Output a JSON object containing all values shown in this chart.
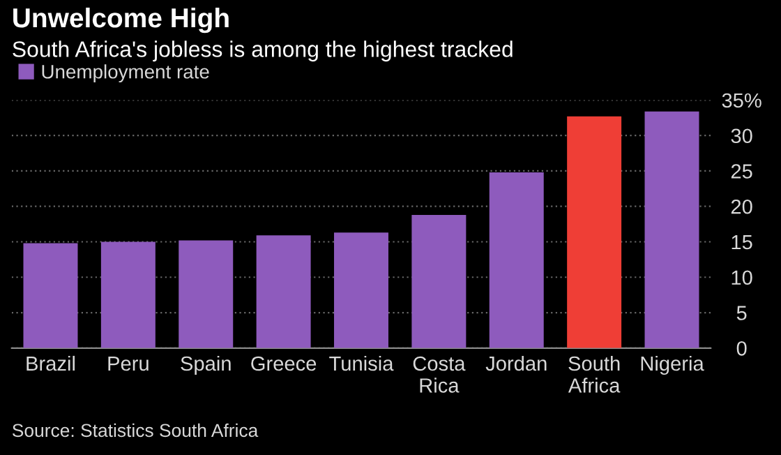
{
  "chart_data": {
    "type": "bar",
    "title": "Unwelcome High",
    "subtitle": "South Africa's jobless is among the highest tracked",
    "categories": [
      "Brazil",
      "Peru",
      "Spain",
      "Greece",
      "Tunisia",
      "Costa\nRica",
      "Jordan",
      "South\nAfrica",
      "Nigeria"
    ],
    "series": [
      {
        "name": "Unemployment rate",
        "color": "#8e5bbd",
        "colors": [
          "#8e5bbd",
          "#8e5bbd",
          "#8e5bbd",
          "#8e5bbd",
          "#8e5bbd",
          "#8e5bbd",
          "#8e5bbd",
          "#ef3e36",
          "#8e5bbd"
        ],
        "values": [
          14.8,
          15.0,
          15.2,
          15.9,
          16.3,
          18.8,
          24.8,
          32.7,
          33.4
        ]
      }
    ],
    "ylim": [
      0,
      35
    ],
    "yticks": [
      0,
      5,
      10,
      15,
      20,
      25,
      30,
      {
        "value": 35,
        "label": "35%"
      }
    ],
    "grid": "y",
    "legend": "top left",
    "annotations": [
      "Source: Statistics South Africa"
    ]
  }
}
